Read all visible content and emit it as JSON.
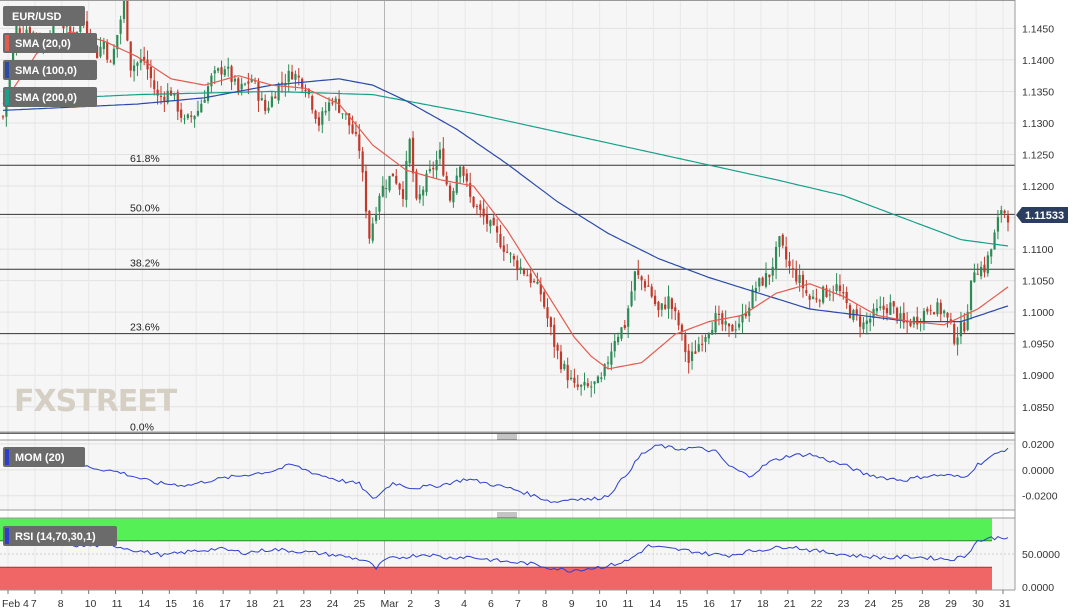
{
  "colors": {
    "candle_up": "#2e8b57",
    "candle_down": "#c0392b",
    "sma20": "#e55a4e",
    "sma100": "#2a4aa8",
    "sma200": "#17a08a",
    "momentum": "#2b3fcf",
    "rsi_line": "#2b3fcf",
    "rsi_overbought": "#55f055",
    "rsi_oversold": "#f06666",
    "label_bg": "#6b6b6b",
    "price_tag_bg": "#2c3e60"
  },
  "chart_data": [
    {
      "type": "candlestick",
      "symbol": "EUR/USD",
      "timeframe_note": "4H candles",
      "ylim": [
        1.081,
        1.1495
      ],
      "y_ticks": [
        "1.1450",
        "1.1400",
        "1.1350",
        "1.1300",
        "1.1250",
        "1.1200",
        "1.1150",
        "1.1100",
        "1.1050",
        "1.1000",
        "1.0950",
        "1.0900",
        "1.0850"
      ],
      "x_ticks": [
        "Feb 4",
        "7",
        "8",
        "10",
        "11",
        "14",
        "15",
        "16",
        "17",
        "18",
        "21",
        "23",
        "24",
        "25",
        "Mar",
        "2",
        "3",
        "4",
        "6",
        "7",
        "8",
        "9",
        "10",
        "11",
        "14",
        "15",
        "16",
        "17",
        "18",
        "21",
        "22",
        "23",
        "24",
        "25",
        "28",
        "29",
        "30",
        "31"
      ],
      "last_price": "1.11533",
      "overlays": [
        {
          "name": "SMA (20,0)",
          "legend": "SMA (20,0)"
        },
        {
          "name": "SMA (100,0)",
          "legend": "SMA (100,0)"
        },
        {
          "name": "SMA (200,0)",
          "legend": "SMA (200,0)"
        }
      ],
      "fibonacci": [
        {
          "label": "61.8%",
          "level": 1.1233
        },
        {
          "label": "50.0%",
          "level": 1.1155
        },
        {
          "label": "38.2%",
          "level": 1.1068
        },
        {
          "label": "23.6%",
          "level": 1.0966
        },
        {
          "label": "0.0%",
          "level": 1.0808
        }
      ],
      "waypoints": [
        [
          0,
          1.131
        ],
        [
          4,
          1.145
        ],
        [
          8,
          1.145
        ],
        [
          12,
          1.142
        ],
        [
          16,
          1.147
        ],
        [
          20,
          1.144
        ],
        [
          24,
          1.146
        ],
        [
          28,
          1.141
        ],
        [
          30,
          1.143
        ],
        [
          32,
          1.139
        ],
        [
          36,
          1.149
        ],
        [
          38,
          1.139
        ],
        [
          42,
          1.14
        ],
        [
          46,
          1.134
        ],
        [
          50,
          1.135
        ],
        [
          54,
          1.13
        ],
        [
          58,
          1.132
        ],
        [
          62,
          1.137
        ],
        [
          66,
          1.139
        ],
        [
          70,
          1.135
        ],
        [
          74,
          1.137
        ],
        [
          78,
          1.132
        ],
        [
          82,
          1.136
        ],
        [
          86,
          1.138
        ],
        [
          90,
          1.136
        ],
        [
          94,
          1.13
        ],
        [
          98,
          1.134
        ],
        [
          102,
          1.131
        ],
        [
          106,
          1.126
        ],
        [
          109,
          1.112
        ],
        [
          112,
          1.119
        ],
        [
          116,
          1.122
        ],
        [
          119,
          1.119
        ],
        [
          121,
          1.127
        ],
        [
          123,
          1.117
        ],
        [
          126,
          1.121
        ],
        [
          130,
          1.125
        ],
        [
          133,
          1.118
        ],
        [
          136,
          1.124
        ],
        [
          139,
          1.118
        ],
        [
          143,
          1.115
        ],
        [
          147,
          1.112
        ],
        [
          152,
          1.108
        ],
        [
          156,
          1.106
        ],
        [
          160,
          1.103
        ],
        [
          164,
          1.095
        ],
        [
          166,
          1.092
        ],
        [
          170,
          1.088
        ],
        [
          174,
          1.088
        ],
        [
          178,
          1.089
        ],
        [
          182,
          1.096
        ],
        [
          185,
          1.098
        ],
        [
          188,
          1.106
        ],
        [
          192,
          1.104
        ],
        [
          195,
          1.1
        ],
        [
          198,
          1.102
        ],
        [
          201,
          1.098
        ],
        [
          204,
          1.092
        ],
        [
          208,
          1.096
        ],
        [
          212,
          1.099
        ],
        [
          216,
          1.097
        ],
        [
          220,
          1.099
        ],
        [
          224,
          1.104
        ],
        [
          228,
          1.106
        ],
        [
          231,
          1.111
        ],
        [
          234,
          1.107
        ],
        [
          237,
          1.105
        ],
        [
          240,
          1.102
        ],
        [
          244,
          1.103
        ],
        [
          248,
          1.104
        ],
        [
          252,
          1.1
        ],
        [
          256,
          1.098
        ],
        [
          260,
          1.1
        ],
        [
          264,
          1.101
        ],
        [
          268,
          1.098
        ],
        [
          272,
          1.099
        ],
        [
          276,
          1.101
        ],
        [
          280,
          1.1
        ],
        [
          283,
          1.096
        ],
        [
          286,
          1.098
        ],
        [
          289,
          1.107
        ],
        [
          292,
          1.107
        ],
        [
          294,
          1.11
        ],
        [
          297,
          1.1165
        ],
        [
          299,
          1.1153
        ]
      ],
      "sma20_points": [
        [
          0,
          1.133
        ],
        [
          10,
          1.141
        ],
        [
          20,
          1.1445
        ],
        [
          30,
          1.143
        ],
        [
          40,
          1.1405
        ],
        [
          50,
          1.137
        ],
        [
          60,
          1.136
        ],
        [
          70,
          1.1375
        ],
        [
          80,
          1.136
        ],
        [
          90,
          1.1355
        ],
        [
          100,
          1.133
        ],
        [
          110,
          1.1265
        ],
        [
          120,
          1.1225
        ],
        [
          130,
          1.121
        ],
        [
          140,
          1.12
        ],
        [
          150,
          1.113
        ],
        [
          160,
          1.1045
        ],
        [
          170,
          1.096
        ],
        [
          175,
          1.093
        ],
        [
          180,
          1.091
        ],
        [
          190,
          1.092
        ],
        [
          200,
          1.0965
        ],
        [
          210,
          1.0985
        ],
        [
          220,
          1.0995
        ],
        [
          230,
          1.103
        ],
        [
          240,
          1.1045
        ],
        [
          250,
          1.1025
        ],
        [
          260,
          1.0995
        ],
        [
          270,
          1.0985
        ],
        [
          280,
          1.098
        ],
        [
          290,
          1.1005
        ],
        [
          299,
          1.104
        ]
      ],
      "sma100_points": [
        [
          0,
          1.132
        ],
        [
          20,
          1.1325
        ],
        [
          40,
          1.133
        ],
        [
          60,
          1.134
        ],
        [
          80,
          1.136
        ],
        [
          100,
          1.137
        ],
        [
          110,
          1.136
        ],
        [
          120,
          1.1335
        ],
        [
          135,
          1.129
        ],
        [
          150,
          1.1235
        ],
        [
          165,
          1.1175
        ],
        [
          180,
          1.1125
        ],
        [
          195,
          1.1085
        ],
        [
          210,
          1.1055
        ],
        [
          225,
          1.103
        ],
        [
          240,
          1.1005
        ],
        [
          255,
          1.0995
        ],
        [
          270,
          1.0985
        ],
        [
          285,
          1.0985
        ],
        [
          299,
          1.101
        ]
      ],
      "sma200_points": [
        [
          0,
          1.1335
        ],
        [
          40,
          1.1345
        ],
        [
          80,
          1.135
        ],
        [
          110,
          1.1345
        ],
        [
          140,
          1.1315
        ],
        [
          170,
          1.128
        ],
        [
          200,
          1.1245
        ],
        [
          230,
          1.121
        ],
        [
          250,
          1.1185
        ],
        [
          270,
          1.1145
        ],
        [
          285,
          1.1115
        ],
        [
          299,
          1.1105
        ]
      ]
    },
    {
      "type": "line",
      "name": "MOM (20)",
      "legend": "MOM (20)",
      "y_ticks": [
        "0.0200",
        "0.0000",
        "-0.0200"
      ],
      "ylim": [
        -0.031,
        0.023
      ],
      "points": [
        [
          0,
          0.015
        ],
        [
          10,
          0.012
        ],
        [
          20,
          0.005
        ],
        [
          28,
          0.001
        ],
        [
          35,
          -0.002
        ],
        [
          45,
          -0.01
        ],
        [
          55,
          -0.012
        ],
        [
          62,
          -0.008
        ],
        [
          72,
          -0.004
        ],
        [
          80,
          -0.001
        ],
        [
          86,
          0.004
        ],
        [
          93,
          -0.003
        ],
        [
          100,
          -0.008
        ],
        [
          106,
          -0.011
        ],
        [
          110,
          -0.023
        ],
        [
          116,
          -0.01
        ],
        [
          122,
          -0.014
        ],
        [
          130,
          -0.012
        ],
        [
          138,
          -0.007
        ],
        [
          145,
          -0.011
        ],
        [
          152,
          -0.015
        ],
        [
          158,
          -0.02
        ],
        [
          164,
          -0.025
        ],
        [
          170,
          -0.022
        ],
        [
          175,
          -0.023
        ],
        [
          180,
          -0.02
        ],
        [
          185,
          -0.005
        ],
        [
          190,
          0.012
        ],
        [
          195,
          0.019
        ],
        [
          200,
          0.016
        ],
        [
          206,
          0.017
        ],
        [
          212,
          0.014
        ],
        [
          216,
          0.003
        ],
        [
          222,
          -0.005
        ],
        [
          228,
          0.006
        ],
        [
          234,
          0.011
        ],
        [
          240,
          0.012
        ],
        [
          246,
          0.007
        ],
        [
          252,
          0.002
        ],
        [
          256,
          -0.003
        ],
        [
          262,
          -0.006
        ],
        [
          268,
          -0.008
        ],
        [
          274,
          -0.005
        ],
        [
          280,
          -0.004
        ],
        [
          286,
          -0.006
        ],
        [
          290,
          0.004
        ],
        [
          294,
          0.01
        ],
        [
          299,
          0.017
        ]
      ]
    },
    {
      "type": "line",
      "name": "RSI (14,70,30,1)",
      "legend": "RSI (14,70,30,1)",
      "y_ticks": [
        "50.0000",
        "0.0000"
      ],
      "ylim": [
        0,
        100
      ],
      "overbought": 70,
      "oversold": 30,
      "points": [
        [
          0,
          68
        ],
        [
          8,
          72
        ],
        [
          16,
          66
        ],
        [
          24,
          62
        ],
        [
          32,
          64
        ],
        [
          40,
          55
        ],
        [
          48,
          48
        ],
        [
          56,
          54
        ],
        [
          64,
          58
        ],
        [
          72,
          52
        ],
        [
          80,
          57
        ],
        [
          88,
          54
        ],
        [
          96,
          50
        ],
        [
          102,
          46
        ],
        [
          108,
          40
        ],
        [
          111,
          28
        ],
        [
          114,
          42
        ],
        [
          120,
          46
        ],
        [
          126,
          50
        ],
        [
          132,
          44
        ],
        [
          138,
          46
        ],
        [
          144,
          42
        ],
        [
          150,
          38
        ],
        [
          156,
          36
        ],
        [
          162,
          30
        ],
        [
          168,
          25
        ],
        [
          174,
          28
        ],
        [
          180,
          32
        ],
        [
          186,
          40
        ],
        [
          192,
          62
        ],
        [
          198,
          58
        ],
        [
          204,
          55
        ],
        [
          210,
          50
        ],
        [
          216,
          48
        ],
        [
          222,
          54
        ],
        [
          228,
          58
        ],
        [
          234,
          62
        ],
        [
          240,
          56
        ],
        [
          246,
          52
        ],
        [
          252,
          48
        ],
        [
          258,
          46
        ],
        [
          264,
          44
        ],
        [
          270,
          46
        ],
        [
          276,
          44
        ],
        [
          282,
          42
        ],
        [
          286,
          46
        ],
        [
          290,
          70
        ],
        [
          294,
          74
        ],
        [
          299,
          76
        ]
      ]
    }
  ]
}
